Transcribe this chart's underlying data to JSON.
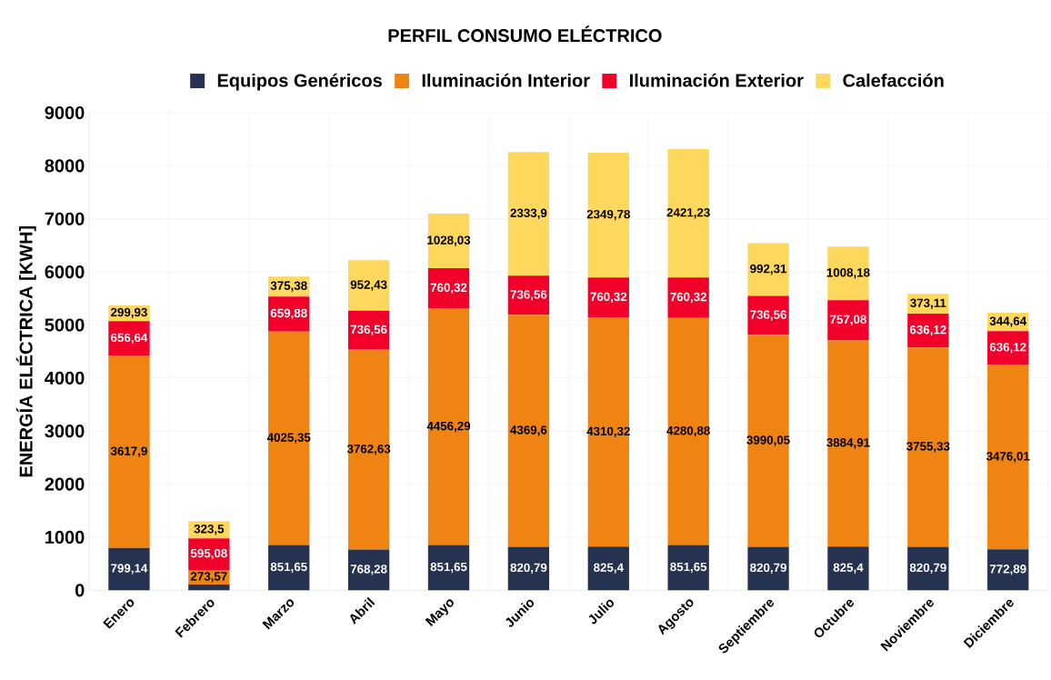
{
  "chart_data": {
    "type": "bar",
    "title": "PERFIL CONSUMO ELÉCTRICO",
    "ylabel": "ENERGÍA ELÉCTRICA [KWH]",
    "categories": [
      "Enero",
      "Febrero",
      "Marzo",
      "Abril",
      "Mayo",
      "Junio",
      "Julio",
      "Agosto",
      "Septiembre",
      "Octubre",
      "Noviembre",
      "Diciembre"
    ],
    "stacked": true,
    "series": [
      {
        "name": "Equipos Genéricos",
        "color": "#263350",
        "values": [
          799.14,
          110,
          851.65,
          768.28,
          851.65,
          820.79,
          825.4,
          851.65,
          820.79,
          825.4,
          820.79,
          772.89
        ],
        "value_labels": [
          "799,14",
          null,
          "851,65",
          "768,28",
          "851,65",
          "820,79",
          "825,4",
          "851,65",
          "820,79",
          "825,4",
          "820,79",
          "772,89"
        ]
      },
      {
        "name": "Iluminación Interior",
        "color": "#f08412",
        "values": [
          3617.9,
          273.57,
          4025.35,
          3762.63,
          4456.29,
          4369.6,
          4310.32,
          4280.88,
          3990.05,
          3884.91,
          3755.33,
          3476.01
        ],
        "value_labels": [
          "3617,9",
          "273,57",
          "4025,35",
          "3762,63",
          "4456,29",
          "4369,6",
          "4310,32",
          "4280,88",
          "3990,05",
          "3884,91",
          "3755,33",
          "3476,01"
        ]
      },
      {
        "name": "Iluminación Exterior",
        "color": "#f2002a",
        "values": [
          656.64,
          595.08,
          659.88,
          736.56,
          760.32,
          736.56,
          760.32,
          760.32,
          736.56,
          757.08,
          636.12,
          636.12
        ],
        "value_labels": [
          "656,64",
          "595,08",
          "659,88",
          "736,56",
          "760,32",
          "736,56",
          "760,32",
          "760,32",
          "736,56",
          "757,08",
          "636,12",
          "636,12"
        ]
      },
      {
        "name": "Calefacción",
        "color": "#fdd85d",
        "values": [
          299.93,
          323.5,
          375.38,
          952.43,
          1028.03,
          2333.9,
          2349.78,
          2421.23,
          992.31,
          1008.18,
          373.11,
          344.64
        ],
        "value_labels": [
          "299,93",
          "323,5",
          "375,38",
          "952,43",
          "1028,03",
          "2333,9",
          "2349,78",
          "2421,23",
          "992,31",
          "1008,18",
          "373,11",
          "344,64"
        ]
      }
    ],
    "ylim": [
      0,
      9000
    ],
    "yticks": [
      0,
      1000,
      2000,
      3000,
      4000,
      5000,
      6000,
      7000,
      8000,
      9000
    ],
    "grid": true,
    "legend": "top"
  }
}
